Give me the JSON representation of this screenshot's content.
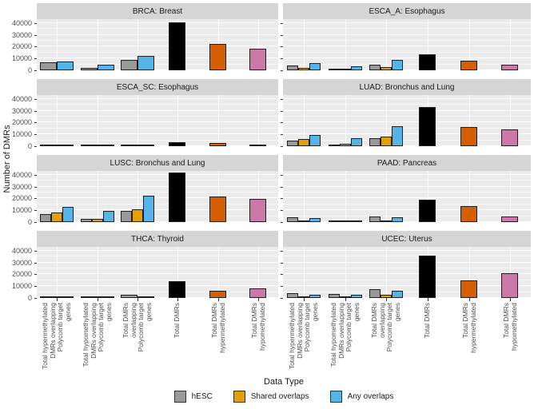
{
  "chart_data": {
    "type": "bar",
    "faceted": true,
    "grid": "on",
    "x_axis_title": "Data Type",
    "y_axis_title": "Number of DMRs",
    "y_ticks": [
      0,
      10000,
      20000,
      30000,
      40000
    ],
    "ylim": [
      0,
      43400
    ],
    "categories": [
      "Total hypermethylated\nDMRs overlapping\nPolycomb target\ngenes",
      "Total hypomethylated\nDMRs overlapping\nPolycomb target\ngenes",
      "Total DMRs\noverlapping\nPolycomb target\ngenes",
      "Total DMRs",
      "Total DMRs\nhypermethylated",
      "Total DMRs\nhypomethylated"
    ],
    "legend": {
      "position": "bottom",
      "entries": [
        {
          "label": "hESC",
          "color": "#999999"
        },
        {
          "label": "Shared overlaps",
          "color": "#E69F00"
        },
        {
          "label": "Any overlaps",
          "color": "#56B4E9"
        }
      ]
    },
    "colors": {
      "hESC": "#999999",
      "shared_overlaps": "#E69F00",
      "any_overlaps": "#56B4E9",
      "total_dmrs": "#000000",
      "total_hypermethylated": "#D55E00",
      "total_hypomethylated": "#CC79A7",
      "panel_bg": "#EBEBEB",
      "strip_bg": "#D5D5D5",
      "grid": "#FFFFFF"
    },
    "panels": [
      {
        "title": "BRCA: Breast",
        "hESC": [
          6500,
          2000,
          9000
        ],
        "shared_overlaps": null,
        "any_overlaps": [
          7500,
          4800,
          12500
        ],
        "total_dmrs": 41000,
        "total_hypermethylated": 22500,
        "total_hypomethylated": 18500
      },
      {
        "title": "ESCA_A: Esophagus",
        "hESC": [
          4000,
          700,
          4800
        ],
        "shared_overlaps": [
          2200,
          500,
          2800
        ],
        "any_overlaps": [
          6200,
          3200,
          8800
        ],
        "total_dmrs": 13500,
        "total_hypermethylated": 8000,
        "total_hypomethylated": 5000
      },
      {
        "title": "ESCA_SC: Esophagus",
        "hESC": [
          300,
          250,
          450
        ],
        "shared_overlaps": null,
        "any_overlaps": [
          1000,
          400,
          1400
        ],
        "total_dmrs": 3500,
        "total_hypermethylated": 2800,
        "total_hypomethylated": 700
      },
      {
        "title": "LUAD: Bronchus and Lung",
        "hESC": [
          4500,
          1500,
          6500
        ],
        "shared_overlaps": [
          5800,
          2200,
          8000
        ],
        "any_overlaps": [
          9500,
          6500,
          17000
        ],
        "total_dmrs": 33000,
        "total_hypermethylated": 16500,
        "total_hypomethylated": 14500
      },
      {
        "title": "LUSC: Bronchus and Lung",
        "hESC": [
          7000,
          2400,
          9500
        ],
        "shared_overlaps": [
          7900,
          2900,
          10800
        ],
        "any_overlaps": [
          13000,
          9200,
          22500
        ],
        "total_dmrs": 42000,
        "total_hypermethylated": 22000,
        "total_hypomethylated": 19500
      },
      {
        "title": "PAAD: Pancreas",
        "hESC": [
          4000,
          600,
          4700
        ],
        "shared_overlaps": [
          500,
          200,
          700
        ],
        "any_overlaps": [
          3600,
          500,
          4000
        ],
        "total_dmrs": 19000,
        "total_hypermethylated": 13500,
        "total_hypomethylated": 5000
      },
      {
        "title": "THCA: Thyroid",
        "hESC": [
          1500,
          1500,
          2800
        ],
        "shared_overlaps": null,
        "any_overlaps": [
          700,
          500,
          1200
        ],
        "total_dmrs": 14000,
        "total_hypermethylated": 6000,
        "total_hypomethylated": 8300
      },
      {
        "title": "UCEC: Uterus",
        "hESC": [
          4000,
          3500,
          7500
        ],
        "shared_overlaps": [
          1000,
          800,
          2700
        ],
        "any_overlaps": [
          3000,
          2700,
          6300
        ],
        "total_dmrs": 36000,
        "total_hypermethylated": 15000,
        "total_hypomethylated": 21000
      }
    ]
  }
}
